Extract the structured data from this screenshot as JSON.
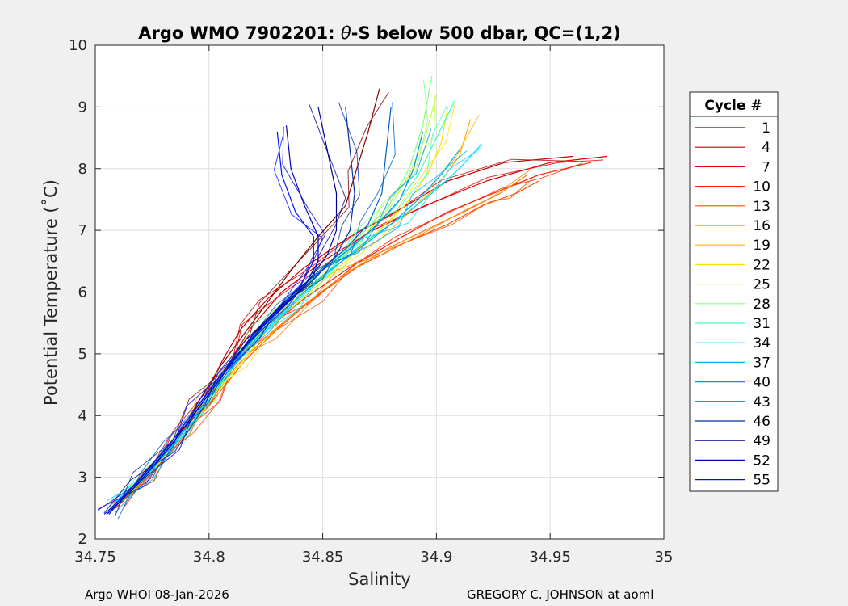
{
  "chart_data": {
    "type": "line",
    "title_prefix": "Argo WMO 7902201: ",
    "title_theta": "θ",
    "title_suffix": "-S below 500 dbar,  QC=(1,2)",
    "xlabel": "Salinity",
    "ylabel": "Potential Temperature (˚C)",
    "xlim": [
      34.75,
      35
    ],
    "ylim": [
      2,
      10
    ],
    "xticks": [
      "34.75",
      "34.8",
      "34.85",
      "34.9",
      "34.95",
      "35"
    ],
    "xtick_values": [
      34.75,
      34.8,
      34.85,
      34.9,
      34.95,
      35
    ],
    "yticks": [
      "2",
      "3",
      "4",
      "5",
      "6",
      "7",
      "8",
      "9",
      "10"
    ],
    "ytick_values": [
      2,
      3,
      4,
      5,
      6,
      7,
      8,
      9,
      10
    ],
    "grid": true,
    "legend": {
      "title": "Cycle #",
      "placement": "outside-right",
      "entries": [
        "1",
        "4",
        "7",
        "10",
        "13",
        "16",
        "19",
        "22",
        "25",
        "28",
        "31",
        "34",
        "37",
        "40",
        "43",
        "46",
        "49",
        "52",
        "55"
      ],
      "colors": [
        "#800000",
        "#c00000",
        "#e00000",
        "#ff2000",
        "#ff5000",
        "#ff8000",
        "#ffb000",
        "#ffe000",
        "#c0ff40",
        "#80ff80",
        "#40ffc0",
        "#00e0ff",
        "#00b0ff",
        "#0090e0",
        "#0060c0",
        "#0030a0",
        "#000090",
        "#0000c0",
        "#0010ff"
      ]
    },
    "series": [
      {
        "name": "1",
        "values": [
          [
            34.758,
            2.5
          ],
          [
            34.772,
            3.0
          ],
          [
            34.785,
            3.6
          ],
          [
            34.795,
            4.2
          ],
          [
            34.805,
            4.8
          ],
          [
            34.815,
            5.3
          ],
          [
            34.825,
            5.8
          ],
          [
            34.835,
            6.3
          ],
          [
            34.848,
            6.9
          ],
          [
            34.86,
            7.4
          ],
          [
            34.865,
            8.0
          ],
          [
            34.87,
            8.6
          ],
          [
            34.875,
            9.3
          ]
        ]
      },
      {
        "name": "4",
        "values": [
          [
            34.76,
            2.6
          ],
          [
            34.774,
            3.1
          ],
          [
            34.788,
            3.7
          ],
          [
            34.798,
            4.3
          ],
          [
            34.806,
            4.9
          ],
          [
            34.814,
            5.4
          ],
          [
            34.826,
            5.9
          ],
          [
            34.842,
            6.4
          ],
          [
            34.862,
            6.9
          ],
          [
            34.882,
            7.3
          ],
          [
            34.905,
            7.8
          ],
          [
            34.93,
            8.1
          ],
          [
            34.96,
            8.2
          ]
        ]
      },
      {
        "name": "7",
        "values": [
          [
            34.759,
            2.5
          ],
          [
            34.773,
            3.0
          ],
          [
            34.786,
            3.6
          ],
          [
            34.797,
            4.2
          ],
          [
            34.808,
            4.8
          ],
          [
            34.818,
            5.4
          ],
          [
            34.832,
            6.0
          ],
          [
            34.85,
            6.5
          ],
          [
            34.872,
            7.0
          ],
          [
            34.895,
            7.4
          ],
          [
            34.922,
            7.8
          ],
          [
            34.95,
            8.1
          ],
          [
            34.975,
            8.2
          ]
        ]
      },
      {
        "name": "10",
        "values": [
          [
            34.76,
            2.6
          ],
          [
            34.775,
            3.1
          ],
          [
            34.789,
            3.7
          ],
          [
            34.801,
            4.3
          ],
          [
            34.813,
            4.9
          ],
          [
            34.826,
            5.4
          ],
          [
            34.842,
            5.9
          ],
          [
            34.862,
            6.4
          ],
          [
            34.885,
            6.9
          ],
          [
            34.905,
            7.3
          ],
          [
            34.925,
            7.6
          ],
          [
            34.945,
            7.9
          ],
          [
            34.968,
            8.1
          ]
        ]
      },
      {
        "name": "13",
        "values": [
          [
            34.761,
            2.6
          ],
          [
            34.776,
            3.1
          ],
          [
            34.79,
            3.7
          ],
          [
            34.803,
            4.3
          ],
          [
            34.816,
            4.9
          ],
          [
            34.83,
            5.4
          ],
          [
            34.846,
            5.9
          ],
          [
            34.865,
            6.4
          ],
          [
            34.886,
            6.8
          ],
          [
            34.905,
            7.1
          ],
          [
            34.92,
            7.4
          ],
          [
            34.935,
            7.6
          ],
          [
            34.945,
            7.8
          ]
        ]
      },
      {
        "name": "16",
        "values": [
          [
            34.76,
            2.6
          ],
          [
            34.775,
            3.1
          ],
          [
            34.788,
            3.7
          ],
          [
            34.8,
            4.2
          ],
          [
            34.812,
            4.8
          ],
          [
            34.826,
            5.3
          ],
          [
            34.842,
            5.8
          ],
          [
            34.86,
            6.3
          ],
          [
            34.878,
            6.7
          ],
          [
            34.895,
            7.0
          ],
          [
            34.912,
            7.3
          ],
          [
            34.928,
            7.6
          ],
          [
            34.94,
            7.9
          ]
        ]
      },
      {
        "name": "19",
        "values": [
          [
            34.759,
            2.6
          ],
          [
            34.774,
            3.1
          ],
          [
            34.787,
            3.7
          ],
          [
            34.799,
            4.3
          ],
          [
            34.811,
            4.9
          ],
          [
            34.824,
            5.4
          ],
          [
            34.838,
            5.9
          ],
          [
            34.855,
            6.4
          ],
          [
            34.872,
            6.9
          ],
          [
            34.888,
            7.3
          ],
          [
            34.9,
            7.7
          ],
          [
            34.91,
            8.2
          ],
          [
            34.915,
            8.8
          ]
        ]
      },
      {
        "name": "22",
        "values": [
          [
            34.76,
            2.6
          ],
          [
            34.775,
            3.1
          ],
          [
            34.789,
            3.7
          ],
          [
            34.801,
            4.3
          ],
          [
            34.813,
            4.8
          ],
          [
            34.826,
            5.4
          ],
          [
            34.841,
            5.9
          ],
          [
            34.857,
            6.4
          ],
          [
            34.872,
            6.9
          ],
          [
            34.886,
            7.4
          ],
          [
            34.896,
            7.9
          ],
          [
            34.902,
            8.4
          ],
          [
            34.905,
            9.0
          ]
        ]
      },
      {
        "name": "25",
        "values": [
          [
            34.76,
            2.6
          ],
          [
            34.775,
            3.1
          ],
          [
            34.788,
            3.7
          ],
          [
            34.8,
            4.3
          ],
          [
            34.812,
            4.9
          ],
          [
            34.824,
            5.4
          ],
          [
            34.838,
            5.9
          ],
          [
            34.854,
            6.4
          ],
          [
            34.868,
            6.9
          ],
          [
            34.88,
            7.4
          ],
          [
            34.888,
            7.9
          ],
          [
            34.895,
            8.5
          ],
          [
            34.9,
            9.2
          ]
        ]
      },
      {
        "name": "28",
        "values": [
          [
            34.759,
            2.6
          ],
          [
            34.773,
            3.1
          ],
          [
            34.787,
            3.6
          ],
          [
            34.799,
            4.2
          ],
          [
            34.81,
            4.8
          ],
          [
            34.822,
            5.4
          ],
          [
            34.836,
            5.9
          ],
          [
            34.851,
            6.4
          ],
          [
            34.866,
            6.9
          ],
          [
            34.879,
            7.4
          ],
          [
            34.888,
            8.0
          ],
          [
            34.894,
            8.7
          ],
          [
            34.898,
            9.5
          ]
        ]
      },
      {
        "name": "31",
        "values": [
          [
            34.76,
            2.6
          ],
          [
            34.774,
            3.1
          ],
          [
            34.788,
            3.7
          ],
          [
            34.8,
            4.3
          ],
          [
            34.812,
            4.9
          ],
          [
            34.825,
            5.4
          ],
          [
            34.839,
            5.9
          ],
          [
            34.854,
            6.4
          ],
          [
            34.869,
            6.9
          ],
          [
            34.882,
            7.4
          ],
          [
            34.892,
            7.9
          ],
          [
            34.9,
            8.5
          ],
          [
            34.908,
            9.1
          ]
        ]
      },
      {
        "name": "34",
        "values": [
          [
            34.759,
            2.6
          ],
          [
            34.773,
            3.1
          ],
          [
            34.787,
            3.6
          ],
          [
            34.799,
            4.2
          ],
          [
            34.811,
            4.8
          ],
          [
            34.823,
            5.3
          ],
          [
            34.837,
            5.8
          ],
          [
            34.852,
            6.3
          ],
          [
            34.868,
            6.8
          ],
          [
            34.884,
            7.2
          ],
          [
            34.898,
            7.6
          ],
          [
            34.91,
            8.0
          ],
          [
            34.92,
            8.4
          ]
        ]
      },
      {
        "name": "37",
        "values": [
          [
            34.758,
            2.5
          ],
          [
            34.772,
            3.0
          ],
          [
            34.786,
            3.6
          ],
          [
            34.798,
            4.2
          ],
          [
            34.81,
            4.8
          ],
          [
            34.822,
            5.3
          ],
          [
            34.836,
            5.8
          ],
          [
            34.851,
            6.3
          ],
          [
            34.866,
            6.7
          ],
          [
            34.88,
            7.1
          ],
          [
            34.892,
            7.5
          ],
          [
            34.902,
            7.9
          ],
          [
            34.91,
            8.3
          ]
        ]
      },
      {
        "name": "40",
        "values": [
          [
            34.757,
            2.5
          ],
          [
            34.771,
            3.0
          ],
          [
            34.785,
            3.6
          ],
          [
            34.797,
            4.2
          ],
          [
            34.809,
            4.8
          ],
          [
            34.821,
            5.3
          ],
          [
            34.834,
            5.8
          ],
          [
            34.848,
            6.3
          ],
          [
            34.862,
            6.7
          ],
          [
            34.874,
            7.1
          ],
          [
            34.884,
            7.5
          ],
          [
            34.89,
            8.0
          ],
          [
            34.894,
            8.6
          ]
        ]
      },
      {
        "name": "43",
        "values": [
          [
            34.756,
            2.4
          ],
          [
            34.77,
            3.0
          ],
          [
            34.784,
            3.6
          ],
          [
            34.796,
            4.2
          ],
          [
            34.808,
            4.8
          ],
          [
            34.82,
            5.3
          ],
          [
            34.833,
            5.8
          ],
          [
            34.847,
            6.3
          ],
          [
            34.86,
            6.7
          ],
          [
            34.87,
            7.1
          ],
          [
            34.876,
            7.6
          ],
          [
            34.878,
            8.3
          ],
          [
            34.88,
            9.0
          ]
        ]
      },
      {
        "name": "46",
        "values": [
          [
            34.756,
            2.4
          ],
          [
            34.77,
            3.0
          ],
          [
            34.784,
            3.6
          ],
          [
            34.796,
            4.2
          ],
          [
            34.808,
            4.8
          ],
          [
            34.82,
            5.3
          ],
          [
            34.833,
            5.8
          ],
          [
            34.846,
            6.2
          ],
          [
            34.856,
            6.6
          ],
          [
            34.862,
            7.0
          ],
          [
            34.864,
            7.6
          ],
          [
            34.862,
            8.3
          ],
          [
            34.86,
            9.0
          ]
        ]
      },
      {
        "name": "49",
        "values": [
          [
            34.755,
            2.4
          ],
          [
            34.769,
            2.9
          ],
          [
            34.783,
            3.5
          ],
          [
            34.795,
            4.1
          ],
          [
            34.807,
            4.7
          ],
          [
            34.819,
            5.3
          ],
          [
            34.832,
            5.8
          ],
          [
            34.844,
            6.2
          ],
          [
            34.852,
            6.6
          ],
          [
            34.856,
            7.0
          ],
          [
            34.856,
            7.6
          ],
          [
            34.852,
            8.3
          ],
          [
            34.848,
            9.0
          ]
        ]
      },
      {
        "name": "52",
        "values": [
          [
            34.755,
            2.4
          ],
          [
            34.769,
            2.9
          ],
          [
            34.783,
            3.5
          ],
          [
            34.795,
            4.1
          ],
          [
            34.807,
            4.7
          ],
          [
            34.819,
            5.3
          ],
          [
            34.831,
            5.7
          ],
          [
            34.842,
            6.1
          ],
          [
            34.848,
            6.5
          ],
          [
            34.848,
            6.9
          ],
          [
            34.842,
            7.4
          ],
          [
            34.836,
            8.0
          ],
          [
            34.834,
            8.7
          ]
        ]
      },
      {
        "name": "55",
        "values": [
          [
            34.754,
            2.4
          ],
          [
            34.768,
            2.9
          ],
          [
            34.782,
            3.5
          ],
          [
            34.794,
            4.1
          ],
          [
            34.806,
            4.7
          ],
          [
            34.818,
            5.2
          ],
          [
            34.83,
            5.7
          ],
          [
            34.84,
            6.1
          ],
          [
            34.846,
            6.5
          ],
          [
            34.846,
            6.9
          ],
          [
            34.838,
            7.3
          ],
          [
            34.832,
            7.9
          ],
          [
            34.83,
            8.6
          ]
        ]
      }
    ]
  },
  "footer": {
    "left": "Argo WHOI 08-Jan-2026",
    "right": "GREGORY C. JOHNSON at aoml"
  }
}
